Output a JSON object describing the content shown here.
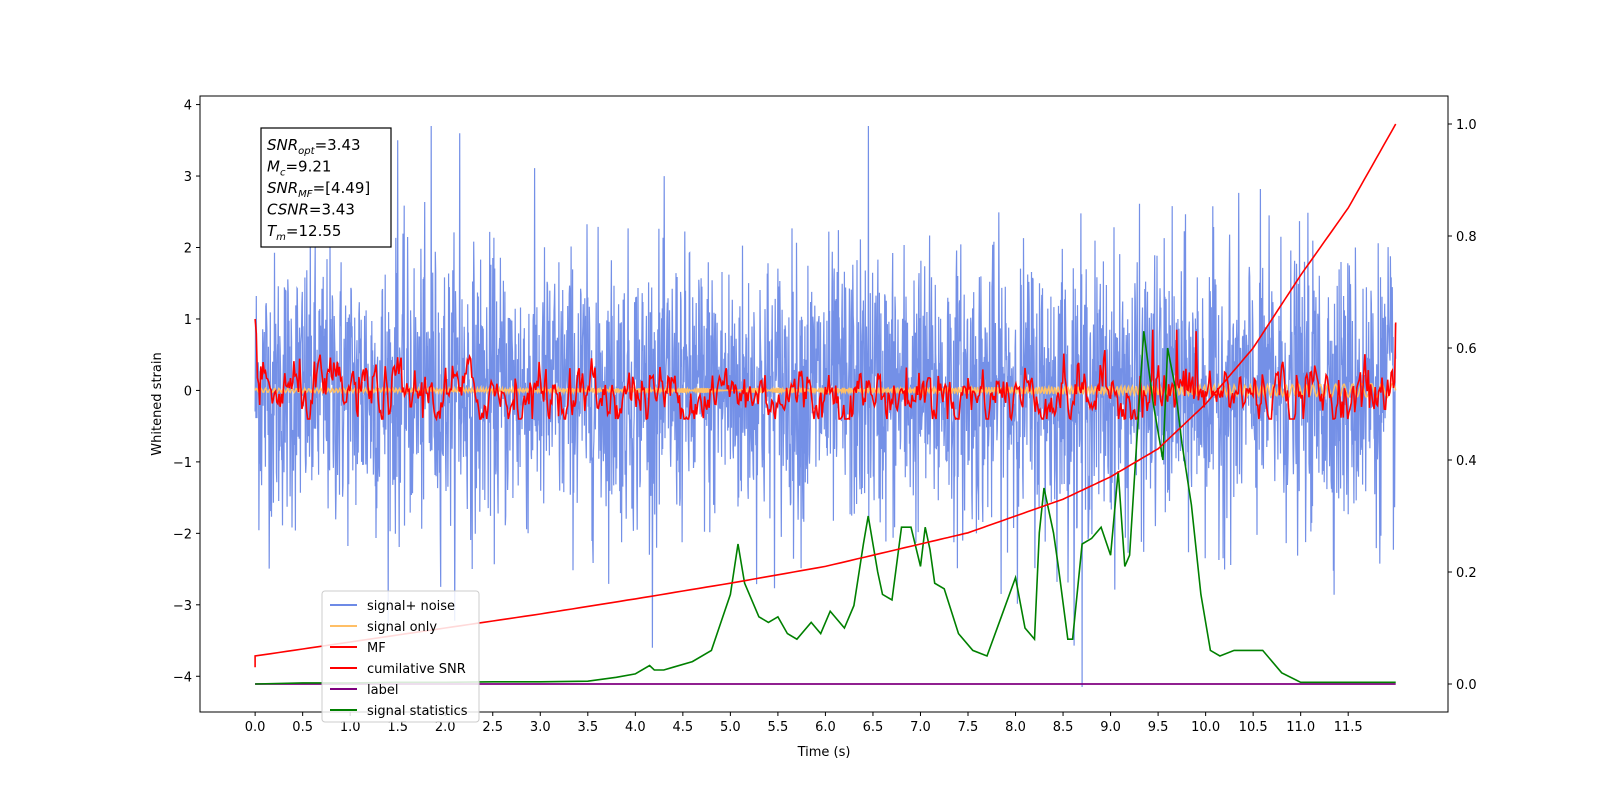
{
  "chart_data": {
    "type": "line",
    "xlabel": "Time (s)",
    "ylabel": "Whitened strain",
    "xlim": [
      -0.58,
      12.55
    ],
    "ylim": [
      -4.5,
      4.12
    ],
    "y2lim": [
      -0.05,
      1.05
    ],
    "x_ticks": [
      0.0,
      0.5,
      1.0,
      1.5,
      2.0,
      2.5,
      3.0,
      3.5,
      4.0,
      4.5,
      5.0,
      5.5,
      6.0,
      6.5,
      7.0,
      7.5,
      8.0,
      8.5,
      9.0,
      9.5,
      10.0,
      10.5,
      11.0,
      11.5
    ],
    "x_tick_labels": [
      "0.0",
      "0.5",
      "1.0",
      "1.5",
      "2.0",
      "2.5",
      "3.0",
      "3.5",
      "4.0",
      "4.5",
      "5.0",
      "5.5",
      "6.0",
      "6.5",
      "7.0",
      "7.5",
      "8.0",
      "8.5",
      "9.0",
      "9.5",
      "10.0",
      "10.5",
      "11.0",
      "11.5"
    ],
    "y_ticks": [
      -4,
      -3,
      -2,
      -1,
      0,
      1,
      2,
      3,
      4
    ],
    "y_tick_labels": [
      "−4",
      "−3",
      "−2",
      "−1",
      "0",
      "1",
      "2",
      "3",
      "4"
    ],
    "y2_ticks": [
      0.0,
      0.2,
      0.4,
      0.6,
      0.8,
      1.0
    ],
    "y2_tick_labels": [
      "0.0",
      "0.2",
      "0.4",
      "0.6",
      "0.8",
      "1.0"
    ],
    "grid": false,
    "legend_position": "lower-left",
    "annotation": {
      "lines": [
        {
          "main": "SNR",
          "sub": "opt",
          "value": "=3.43"
        },
        {
          "main": "M",
          "sub": "c",
          "value": "=9.21"
        },
        {
          "main": "SNR",
          "sub": "MF",
          "value": "=[4.49]"
        },
        {
          "main": "CSNR",
          "sub": "",
          "value": "=3.43"
        },
        {
          "main": "T",
          "sub": "m",
          "value": "=12.55"
        }
      ]
    },
    "series": [
      {
        "name": "signal+ noise",
        "color": "#6d8ae6",
        "axis": "left",
        "kind": "noise",
        "x_range": [
          0,
          12.0
        ],
        "amplitude_std": 0.95,
        "peak_points": [
          [
            1.85,
            3.7
          ],
          [
            6.45,
            3.7
          ],
          [
            8.7,
            -4.15
          ],
          [
            2.15,
            3.6
          ],
          [
            1.5,
            3.5
          ]
        ]
      },
      {
        "name": "signal only",
        "color": "#ffbf66",
        "axis": "left",
        "kind": "chirp",
        "x_range": [
          0,
          12.0
        ],
        "values_range": [
          -0.1,
          0.1
        ]
      },
      {
        "name": "MF",
        "color": "#ff0000",
        "axis": "left",
        "kind": "matched-filter",
        "x_range": [
          0,
          12.0
        ],
        "start": 1.0,
        "peaks": [
          [
            9.45,
            0.85
          ],
          [
            9.7,
            0.85
          ],
          [
            9.9,
            0.83
          ],
          [
            12.0,
            0.95
          ]
        ]
      },
      {
        "name": "cumilative SNR",
        "color": "#ff0000",
        "axis": "right",
        "x": [
          0.0,
          0.0,
          1.0,
          2.0,
          3.0,
          4.0,
          5.0,
          6.0,
          7.0,
          7.5,
          8.0,
          8.5,
          9.0,
          9.5,
          10.0,
          10.5,
          11.0,
          11.5,
          12.0
        ],
        "values": [
          0.03,
          0.05,
          0.075,
          0.1,
          0.125,
          0.152,
          0.18,
          0.21,
          0.25,
          0.27,
          0.3,
          0.33,
          0.37,
          0.42,
          0.5,
          0.6,
          0.73,
          0.85,
          1.0
        ]
      },
      {
        "name": "label",
        "color": "#800080",
        "axis": "right",
        "x": [
          0.0,
          12.0
        ],
        "values": [
          0.0,
          0.0
        ]
      },
      {
        "name": "signal statistics",
        "color": "#008000",
        "axis": "right",
        "x": [
          0.0,
          0.5,
          1.0,
          1.5,
          2.0,
          2.5,
          3.0,
          3.5,
          3.8,
          4.0,
          4.15,
          4.2,
          4.3,
          4.4,
          4.6,
          4.8,
          4.9,
          5.0,
          5.08,
          5.15,
          5.3,
          5.4,
          5.5,
          5.6,
          5.7,
          5.85,
          5.95,
          6.05,
          6.2,
          6.3,
          6.4,
          6.45,
          6.55,
          6.6,
          6.7,
          6.8,
          6.9,
          7.0,
          7.05,
          7.1,
          7.15,
          7.25,
          7.4,
          7.55,
          7.7,
          7.85,
          8.0,
          8.1,
          8.2,
          8.25,
          8.3,
          8.4,
          8.45,
          8.55,
          8.6,
          8.7,
          8.8,
          8.9,
          9.0,
          9.08,
          9.15,
          9.2,
          9.3,
          9.35,
          9.45,
          9.55,
          9.6,
          9.68,
          9.75,
          9.85,
          9.95,
          10.05,
          10.15,
          10.3,
          10.4,
          10.5,
          10.6,
          10.8,
          11.0,
          11.5,
          12.0
        ],
        "values": [
          0.0,
          0.002,
          0.002,
          0.003,
          0.003,
          0.004,
          0.004,
          0.005,
          0.012,
          0.018,
          0.033,
          0.025,
          0.025,
          0.03,
          0.04,
          0.06,
          0.11,
          0.16,
          0.25,
          0.18,
          0.12,
          0.11,
          0.12,
          0.09,
          0.08,
          0.11,
          0.09,
          0.13,
          0.1,
          0.14,
          0.25,
          0.3,
          0.2,
          0.16,
          0.15,
          0.28,
          0.28,
          0.21,
          0.28,
          0.24,
          0.18,
          0.17,
          0.09,
          0.06,
          0.05,
          0.12,
          0.19,
          0.1,
          0.08,
          0.27,
          0.35,
          0.27,
          0.21,
          0.08,
          0.08,
          0.25,
          0.26,
          0.28,
          0.23,
          0.38,
          0.21,
          0.23,
          0.5,
          0.63,
          0.5,
          0.4,
          0.6,
          0.53,
          0.43,
          0.32,
          0.16,
          0.06,
          0.05,
          0.06,
          0.06,
          0.06,
          0.06,
          0.02,
          0.003,
          0.003,
          0.003
        ]
      }
    ]
  }
}
